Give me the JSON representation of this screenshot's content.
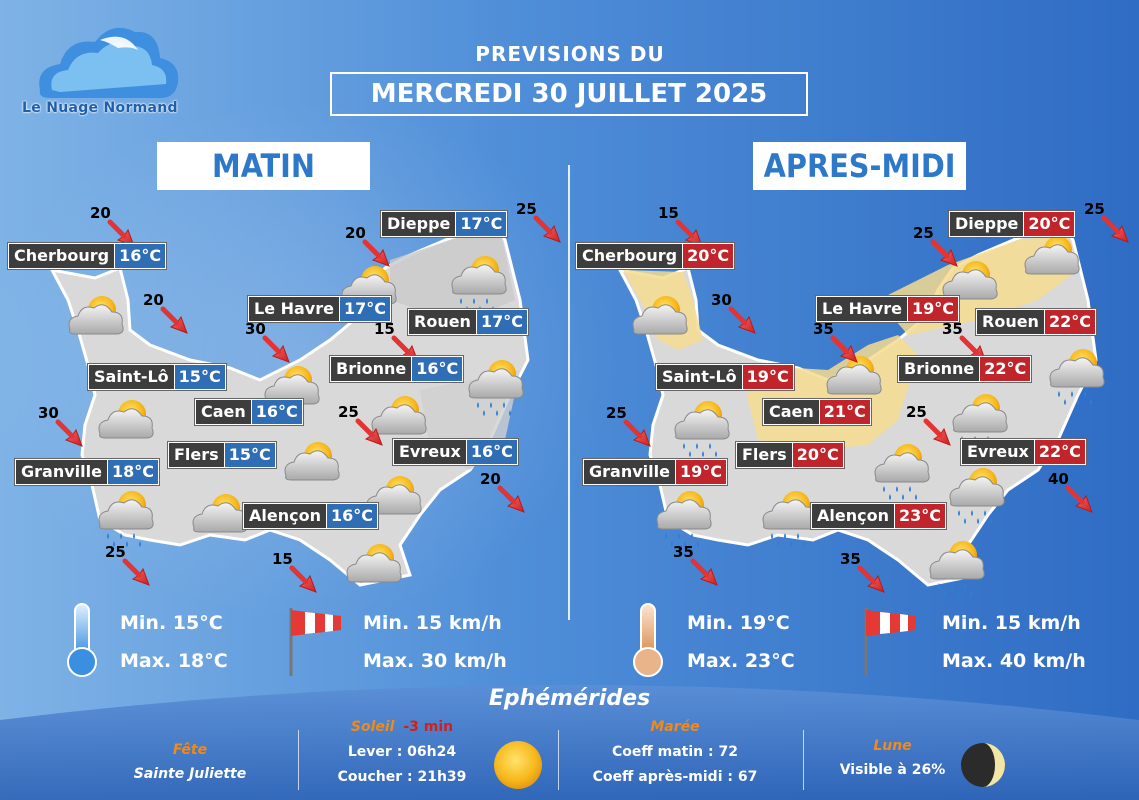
{
  "brand": {
    "name": "Le Nuage Normand"
  },
  "header": {
    "title_small": "PREVISIONS DU",
    "date": "MERCREDI 30 JUILLET 2025"
  },
  "morning": {
    "title": "MATIN",
    "cities": [
      {
        "name": "Cherbourg",
        "temp": "16°C"
      },
      {
        "name": "Dieppe",
        "temp": "17°C"
      },
      {
        "name": "Le Havre",
        "temp": "17°C"
      },
      {
        "name": "Rouen",
        "temp": "17°C"
      },
      {
        "name": "Saint-Lô",
        "temp": "15°C"
      },
      {
        "name": "Brionne",
        "temp": "16°C"
      },
      {
        "name": "Caen",
        "temp": "16°C"
      },
      {
        "name": "Flers",
        "temp": "15°C"
      },
      {
        "name": "Evreux",
        "temp": "16°C"
      },
      {
        "name": "Granville",
        "temp": "18°C"
      },
      {
        "name": "Alençon",
        "temp": "16°C"
      }
    ],
    "winds": [
      "20",
      "20",
      "25",
      "20",
      "30",
      "15",
      "30",
      "25",
      "20",
      "25",
      "15"
    ],
    "temp_min": "Min. 15°C",
    "temp_max": "Max. 18°C",
    "wind_min": "Min. 15 km/h",
    "wind_max": "Max. 30 km/h"
  },
  "afternoon": {
    "title": "APRES-MIDI",
    "cities": [
      {
        "name": "Cherbourg",
        "temp": "20°C"
      },
      {
        "name": "Dieppe",
        "temp": "20°C"
      },
      {
        "name": "Le Havre",
        "temp": "19°C"
      },
      {
        "name": "Rouen",
        "temp": "22°C"
      },
      {
        "name": "Saint-Lô",
        "temp": "19°C"
      },
      {
        "name": "Brionne",
        "temp": "22°C"
      },
      {
        "name": "Caen",
        "temp": "21°C"
      },
      {
        "name": "Flers",
        "temp": "20°C"
      },
      {
        "name": "Evreux",
        "temp": "22°C"
      },
      {
        "name": "Granville",
        "temp": "19°C"
      },
      {
        "name": "Alençon",
        "temp": "23°C"
      }
    ],
    "winds": [
      "15",
      "25",
      "25",
      "30",
      "25",
      "35",
      "35",
      "25",
      "40",
      "35",
      "35"
    ],
    "temp_min": "Min. 19°C",
    "temp_max": "Max. 23°C",
    "wind_min": "Min. 15 km/h",
    "wind_max": "Max. 40 km/h"
  },
  "ephemerides": {
    "title": "Ephémérides",
    "fete": {
      "label": "Fête",
      "value": "Sainte Juliette"
    },
    "soleil": {
      "label": "Soleil",
      "delta": "-3 min",
      "lever": "Lever : 06h24",
      "coucher": "Coucher : 21h39"
    },
    "maree": {
      "label": "Marée",
      "matin": "Coeff matin : 72",
      "apres_midi": "Coeff après-midi : 67"
    },
    "lune": {
      "label": "Lune",
      "value": "Visible à 26%"
    }
  },
  "colors": {
    "cold_temp": "#2f6db4",
    "hot_temp": "#c0252b",
    "accent_orange": "#f08a1a",
    "heat_zone": "#f5dc8f"
  }
}
